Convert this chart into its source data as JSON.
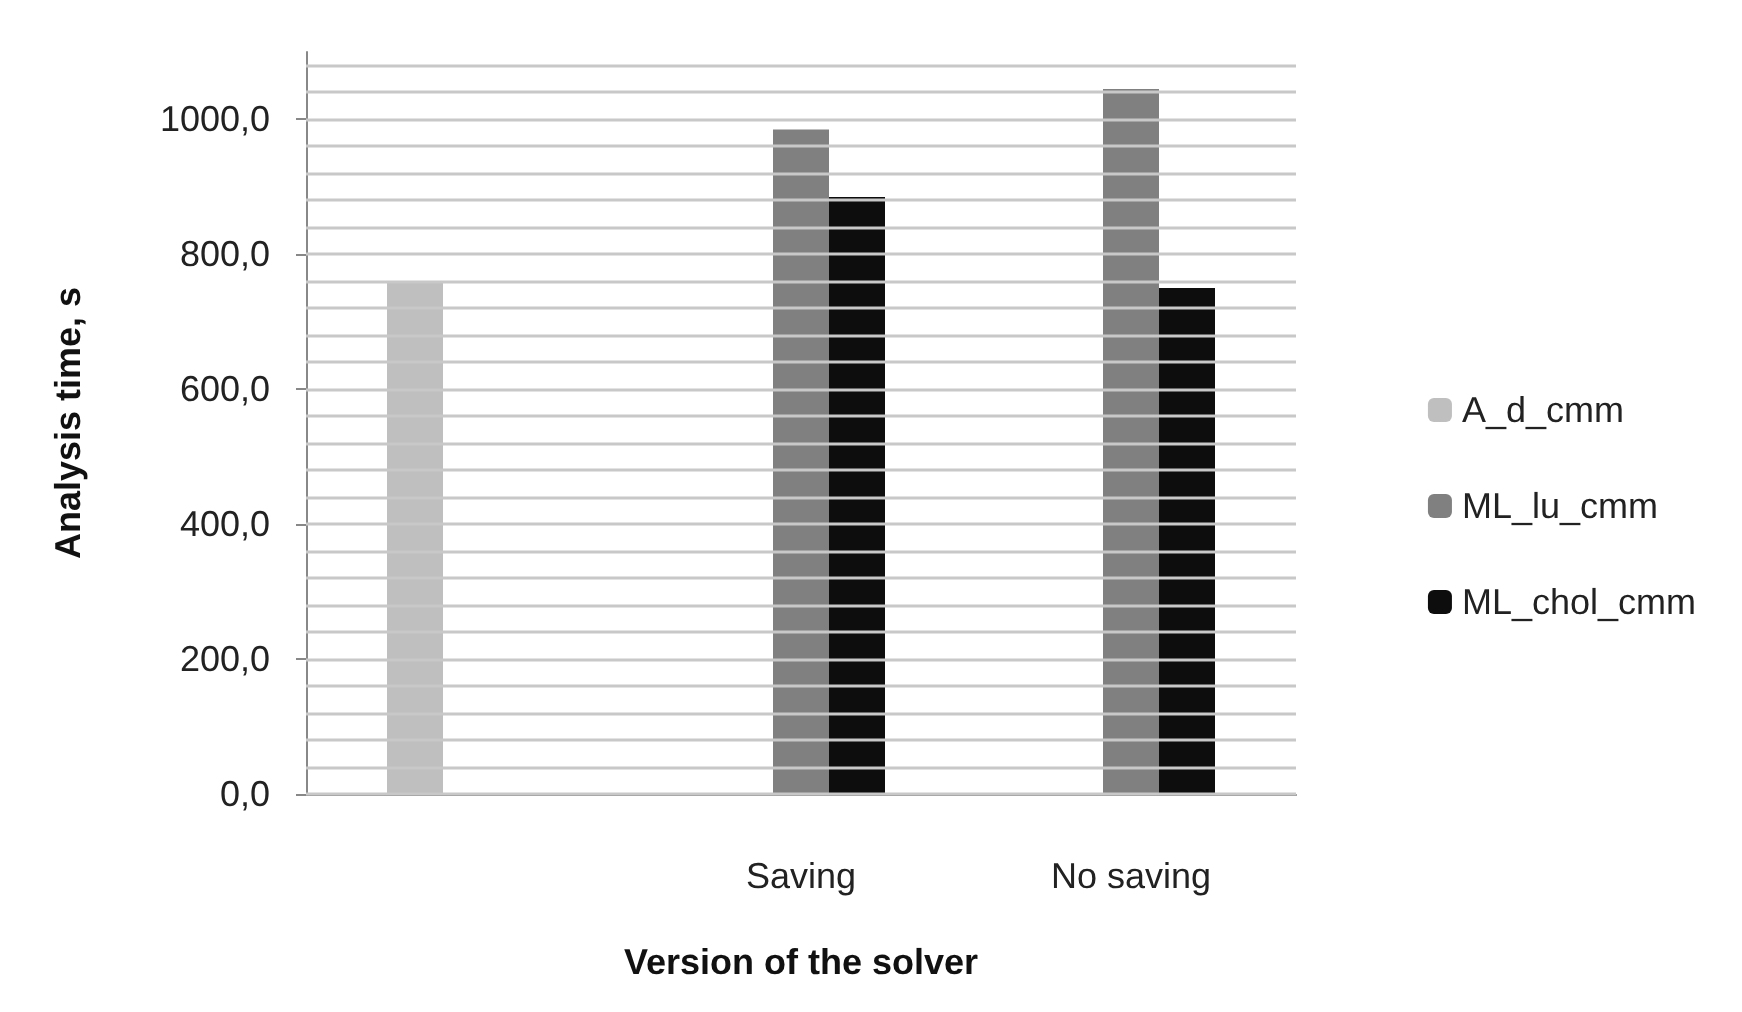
{
  "chart_data": {
    "type": "bar",
    "xlabel": "Version of the solver",
    "ylabel": "Analysis time, s",
    "categories": [
      null,
      "Saving",
      "No saving"
    ],
    "series": [
      {
        "name": "A_d_cmm",
        "color": "#bfbfbf",
        "values": [
          760,
          null,
          null
        ]
      },
      {
        "name": "ML_lu_cmm",
        "color": "#808080",
        "values": [
          null,
          985,
          1045
        ]
      },
      {
        "name": "ML_chol_cmm",
        "color": "#0d0d0d",
        "values": [
          null,
          885,
          750
        ]
      }
    ],
    "ylim": [
      0,
      1100
    ],
    "yticks": [
      {
        "value": 0,
        "label": "0,0"
      },
      {
        "value": 40,
        "label": null
      },
      {
        "value": 80,
        "label": null
      },
      {
        "value": 120,
        "label": null
      },
      {
        "value": 160,
        "label": null
      },
      {
        "value": 200,
        "label": "200,0"
      },
      {
        "value": 240,
        "label": null
      },
      {
        "value": 280,
        "label": null
      },
      {
        "value": 320,
        "label": null
      },
      {
        "value": 360,
        "label": null
      },
      {
        "value": 400,
        "label": "400,0"
      },
      {
        "value": 440,
        "label": null
      },
      {
        "value": 480,
        "label": null
      },
      {
        "value": 520,
        "label": null
      },
      {
        "value": 560,
        "label": null
      },
      {
        "value": 600,
        "label": "600,0"
      },
      {
        "value": 640,
        "label": null
      },
      {
        "value": 680,
        "label": null
      },
      {
        "value": 720,
        "label": null
      },
      {
        "value": 760,
        "label": null
      },
      {
        "value": 800,
        "label": "800,0"
      },
      {
        "value": 840,
        "label": null
      },
      {
        "value": 880,
        "label": null
      },
      {
        "value": 920,
        "label": null
      },
      {
        "value": 960,
        "label": null
      },
      {
        "value": 1000,
        "label": "1000,0"
      },
      {
        "value": 1040,
        "label": null
      },
      {
        "value": 1080,
        "label": null
      }
    ],
    "grid": true,
    "legend": "right"
  }
}
